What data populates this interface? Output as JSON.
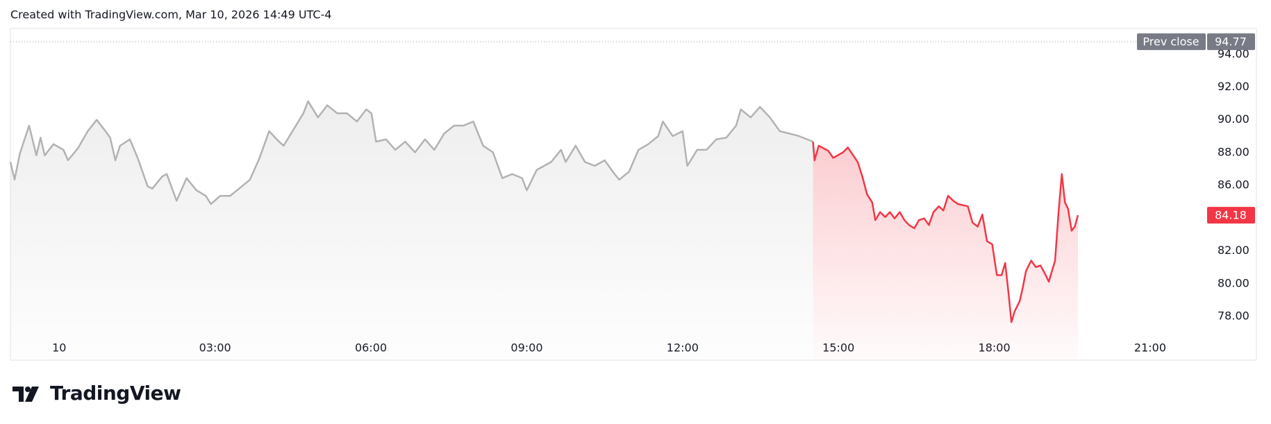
{
  "header": "Created with TradingView.com, Mar 10, 2026 14:49 UTC-4",
  "logo": "TradingView",
  "chart_data": {
    "type": "line",
    "xlim": [
      -0.94,
      22.11
    ],
    "xticks": [
      {
        "value": 0,
        "label": "10"
      },
      {
        "value": 3,
        "label": "03:00"
      },
      {
        "value": 6,
        "label": "06:00"
      },
      {
        "value": 9,
        "label": "09:00"
      },
      {
        "value": 12,
        "label": "12:00"
      },
      {
        "value": 15,
        "label": "15:00"
      },
      {
        "value": 18,
        "label": "18:00"
      },
      {
        "value": 21,
        "label": "21:00"
      }
    ],
    "ylim": [
      75.33,
      95.58
    ],
    "yticks": [
      {
        "value": 78,
        "label": "78.00"
      },
      {
        "value": 80,
        "label": "80.00"
      },
      {
        "value": 82,
        "label": "82.00"
      },
      {
        "value": 84,
        "label": "84.00"
      },
      {
        "value": 86,
        "label": "86.00"
      },
      {
        "value": 88,
        "label": "88.00"
      },
      {
        "value": 90,
        "label": "90.00"
      },
      {
        "value": 92,
        "label": "92.00"
      },
      {
        "value": 94,
        "label": "94.00"
      }
    ],
    "grid": false,
    "prev_close": {
      "label": "Prev close",
      "value": 94.77
    },
    "series": [
      {
        "color": "#b2b2b2",
        "x": [
          -0.94,
          -0.86,
          -0.76,
          -0.58,
          -0.44,
          -0.36,
          -0.28,
          -0.11,
          0.08,
          0.17,
          0.36,
          0.55,
          0.72,
          0.89,
          0.98,
          1.08,
          1.17,
          1.36,
          1.51,
          1.7,
          1.79,
          1.98,
          2.07,
          2.26,
          2.45,
          2.64,
          2.82,
          2.92,
          3.1,
          3.29,
          3.48,
          3.67,
          3.85,
          4.04,
          4.23,
          4.32,
          4.51,
          4.7,
          4.79,
          4.98,
          5.16,
          5.35,
          5.54,
          5.73,
          5.91,
          6.01,
          6.1,
          6.29,
          6.47,
          6.66,
          6.85,
          7.04,
          7.22,
          7.41,
          7.6,
          7.78,
          7.97,
          8.16,
          8.35,
          8.53,
          8.72,
          8.91,
          9.0,
          9.19,
          9.47,
          9.66,
          9.75,
          9.94,
          10.12,
          10.31,
          10.5,
          10.69,
          10.78,
          10.97,
          11.15,
          11.34,
          11.53,
          11.62,
          11.81,
          12.0,
          12.09,
          12.28,
          12.46,
          12.65,
          12.84,
          13.03,
          13.12,
          13.31,
          13.49,
          13.68,
          13.87,
          14.06,
          14.24,
          14.51
        ],
        "values": [
          87.43,
          86.35,
          87.93,
          89.65,
          87.83,
          88.91,
          87.83,
          88.52,
          88.17,
          87.53,
          88.27,
          89.31,
          90.0,
          89.31,
          88.91,
          87.53,
          88.42,
          88.81,
          87.68,
          85.95,
          85.8,
          86.54,
          86.69,
          85.06,
          86.44,
          85.7,
          85.36,
          84.86,
          85.36,
          85.36,
          85.85,
          86.35,
          87.63,
          89.31,
          88.67,
          88.42,
          89.41,
          90.4,
          91.14,
          90.15,
          90.89,
          90.4,
          90.4,
          89.9,
          90.64,
          90.4,
          88.67,
          88.81,
          88.17,
          88.67,
          88.02,
          88.81,
          88.17,
          89.16,
          89.65,
          89.65,
          89.9,
          88.42,
          88.02,
          86.44,
          86.69,
          86.44,
          85.7,
          86.94,
          87.43,
          88.17,
          87.43,
          88.42,
          87.43,
          87.19,
          87.53,
          86.69,
          86.35,
          86.84,
          88.17,
          88.52,
          89.01,
          89.9,
          89.01,
          89.31,
          87.19,
          88.17,
          88.17,
          88.81,
          88.91,
          89.65,
          90.64,
          90.15,
          90.79,
          90.15,
          89.31,
          89.16,
          89.01,
          88.67
        ]
      },
      {
        "color": "#f23645",
        "x": [
          14.51,
          14.54,
          14.62,
          14.8,
          14.9,
          15.09,
          15.18,
          15.37,
          15.46,
          15.55,
          15.65,
          15.71,
          15.8,
          15.9,
          15.99,
          16.08,
          16.18,
          16.27,
          16.36,
          16.46,
          16.55,
          16.65,
          16.74,
          16.83,
          16.93,
          17.02,
          17.11,
          17.21,
          17.3,
          17.49,
          17.58,
          17.68,
          17.77,
          17.86,
          17.96,
          18.05,
          18.14,
          18.21,
          18.27,
          18.33,
          18.39,
          18.49,
          18.55,
          18.61,
          18.71,
          18.8,
          18.89,
          18.99,
          19.05,
          19.11,
          19.17,
          19.24,
          19.3,
          19.36,
          19.42,
          19.49,
          19.55,
          19.61
        ],
        "values": [
          88.67,
          87.53,
          88.42,
          88.12,
          87.68,
          88.02,
          88.32,
          87.43,
          86.54,
          85.46,
          84.96,
          83.88,
          84.37,
          84.07,
          84.37,
          83.98,
          84.37,
          83.88,
          83.58,
          83.38,
          83.88,
          83.98,
          83.58,
          84.37,
          84.72,
          84.47,
          85.36,
          85.06,
          84.86,
          84.72,
          83.73,
          83.48,
          84.22,
          82.59,
          82.4,
          80.52,
          80.52,
          81.26,
          79.53,
          77.65,
          78.3,
          78.94,
          79.78,
          80.77,
          81.41,
          81.01,
          81.11,
          80.52,
          80.12,
          80.77,
          81.41,
          84.47,
          86.69,
          84.96,
          84.57,
          83.23,
          83.48,
          84.18
        ]
      }
    ]
  }
}
